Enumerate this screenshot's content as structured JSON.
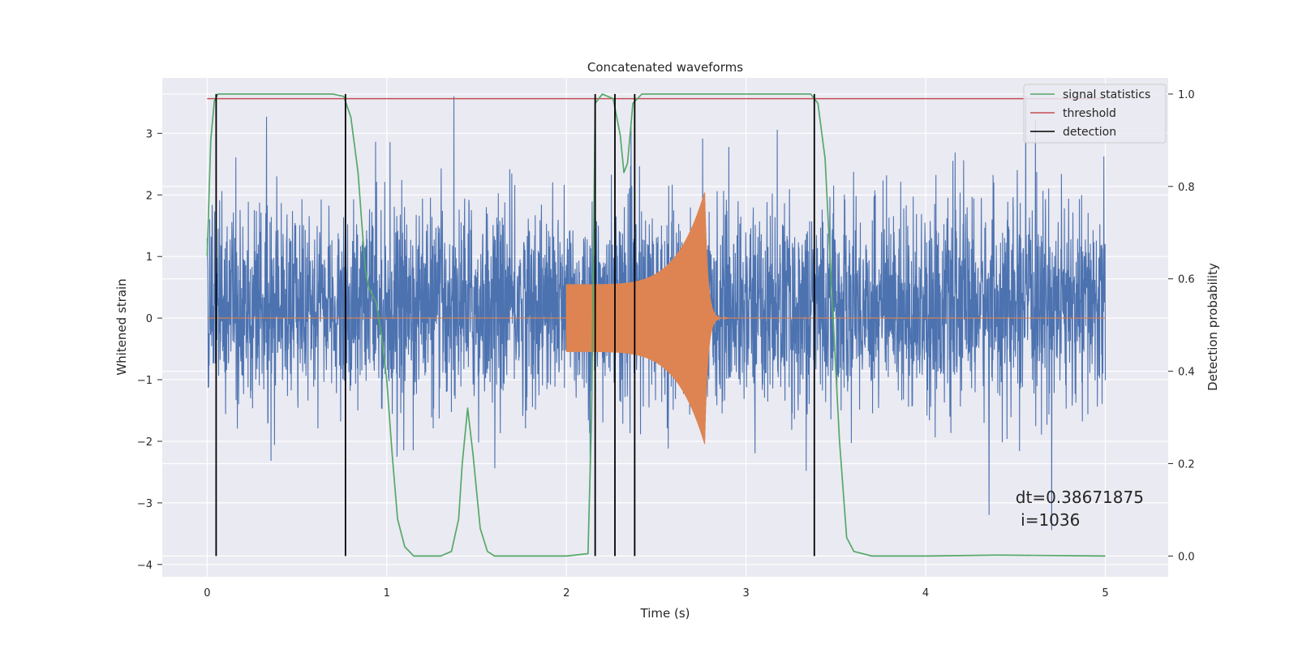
{
  "chart_data": {
    "type": "line",
    "title": "Concatenated waveforms",
    "xlabel": "Time (s)",
    "ylabel": "Whitened strain",
    "y2label": "Detection probability",
    "xlim": [
      -0.25,
      5.35
    ],
    "ylim": [
      -4.2,
      3.9
    ],
    "y2lim": [
      -0.045,
      1.035
    ],
    "xticks": [
      0,
      1,
      2,
      3,
      4,
      5
    ],
    "yticks": [
      -4,
      -3,
      -2,
      -1,
      0,
      1,
      2,
      3
    ],
    "y2ticks": [
      0.0,
      0.2,
      0.4,
      0.6,
      0.8,
      1.0
    ],
    "xtick_labels": [
      "0",
      "1",
      "2",
      "3",
      "4",
      "5"
    ],
    "ytick_labels": [
      "−4",
      "−3",
      "−2",
      "−1",
      "0",
      "1",
      "2",
      "3"
    ],
    "y2tick_labels": [
      "0.0",
      "0.2",
      "0.4",
      "0.6",
      "0.8",
      "1.0"
    ],
    "grid": true,
    "legend_position": "top-right",
    "series": [
      {
        "name": "whitened strain",
        "axis": "left",
        "color": "#4c72b0",
        "kind": "noise",
        "x_range": [
          0,
          5
        ],
        "typical_range": [
          -1.6,
          2.0
        ],
        "peak_range": [
          -3.9,
          3.6
        ]
      },
      {
        "name": "injected waveform",
        "axis": "left",
        "color": "#dd8452",
        "kind": "chirp",
        "start": 2.0,
        "merger": 2.77,
        "start_amplitude": 0.55,
        "peak_amplitude": 2.05,
        "ringdown_end": 2.9
      },
      {
        "name": "signal statistics",
        "axis": "right",
        "color": "#55a868",
        "x": [
          0.0,
          0.02,
          0.04,
          0.06,
          0.1,
          0.7,
          0.76,
          0.8,
          0.84,
          0.88,
          0.9,
          0.94,
          0.97,
          1.0,
          1.03,
          1.06,
          1.1,
          1.15,
          1.3,
          1.36,
          1.4,
          1.42,
          1.45,
          1.48,
          1.52,
          1.56,
          1.6,
          2.0,
          2.12,
          2.14,
          2.16,
          2.2,
          2.26,
          2.3,
          2.32,
          2.34,
          2.37,
          2.42,
          2.5,
          3.36,
          3.4,
          3.44,
          3.48,
          3.52,
          3.56,
          3.6,
          3.7,
          4.0,
          4.4,
          5.0
        ],
        "y": [
          0.65,
          0.9,
          0.985,
          1.0,
          1.0,
          1.0,
          0.995,
          0.95,
          0.83,
          0.62,
          0.58,
          0.55,
          0.48,
          0.38,
          0.22,
          0.08,
          0.02,
          0.0,
          0.0,
          0.01,
          0.08,
          0.2,
          0.32,
          0.22,
          0.06,
          0.01,
          0.0,
          0.0,
          0.005,
          0.3,
          0.98,
          1.0,
          0.99,
          0.91,
          0.83,
          0.85,
          0.98,
          1.0,
          1.0,
          1.0,
          0.98,
          0.86,
          0.55,
          0.25,
          0.04,
          0.01,
          0.0,
          0.0,
          0.002,
          0.0
        ]
      },
      {
        "name": "threshold",
        "axis": "right",
        "color": "#c44e52",
        "x": [
          0.0,
          5.0
        ],
        "y": [
          0.99,
          0.99
        ]
      }
    ],
    "detections": [
      0.05,
      0.77,
      2.16,
      2.27,
      2.38,
      3.38
    ],
    "detection_color": "#000000",
    "detection_range": [
      0.0,
      1.0
    ],
    "legend": [
      {
        "label": "signal statistics",
        "color": "#55a868"
      },
      {
        "label": "threshold",
        "color": "#c44e52"
      },
      {
        "label": "detection",
        "color": "#000000"
      }
    ],
    "annotation": {
      "line1": "dt=0.38671875",
      "line2": " i=1036",
      "x": 4.5,
      "y": -3.0
    }
  }
}
